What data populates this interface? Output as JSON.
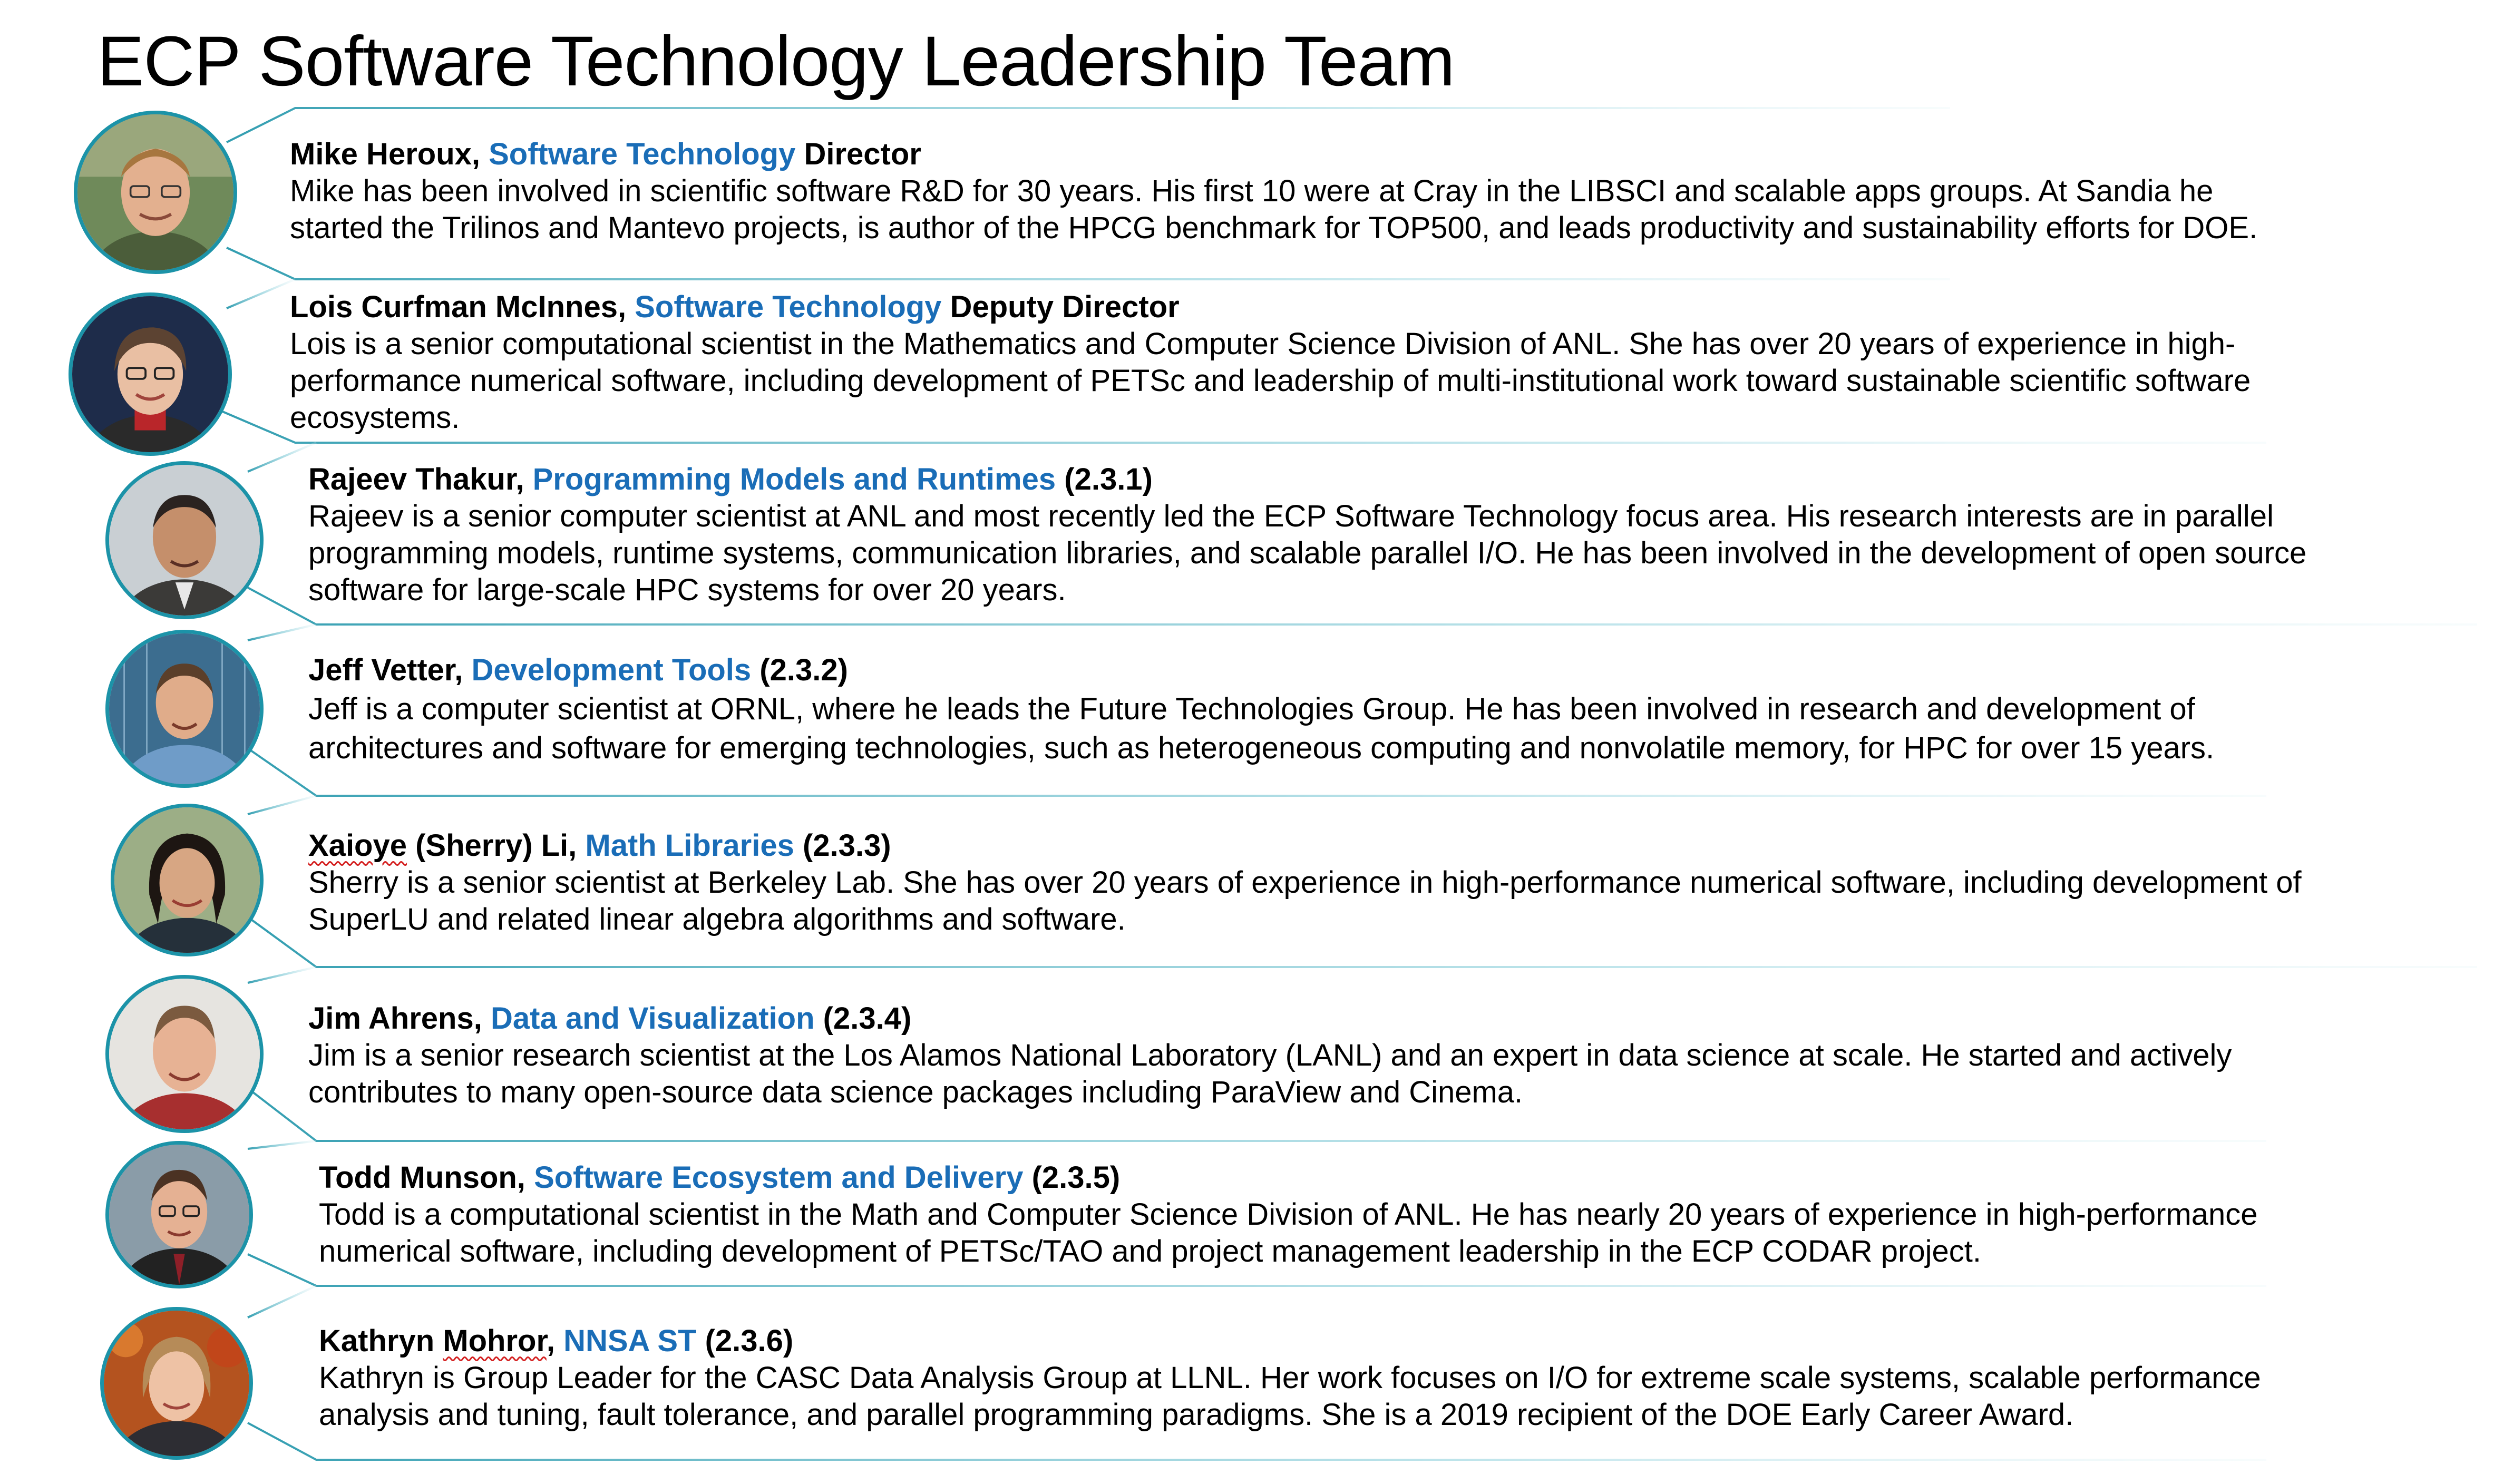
{
  "title": "ECP Software Technology Leadership Team",
  "colors": {
    "accent_blue": "#1a6db7",
    "frame_teal": "#1c93a8",
    "text": "#000000"
  },
  "members": [
    {
      "name": "Mike Heroux,",
      "role": "Software Technology",
      "suffix": " Director",
      "bio": [
        "Mike has been involved in scientific software R&D for 30 years.  His first 10 were at Cray in the LIBSCI and scalable apps groups. At Sandia he",
        "started the Trilinos and Mantevo projects, is author of the HPCG benchmark for TOP500, and leads productivity and sustainability efforts for DOE."
      ]
    },
    {
      "name": "Lois Curfman McInnes,",
      "role": "Software Technology",
      "suffix": " Deputy Director",
      "bio": [
        "Lois is a senior computational scientist in the Mathematics and Computer Science Division of ANL. She has over 20 years of experience in high-",
        "performance numerical software, including development of PETSc and leadership of multi-institutional work toward sustainable scientific software",
        "ecosystems."
      ]
    },
    {
      "name": "Rajeev Thakur,",
      "role": "Programming Models and Runtimes",
      "suffix": " (2.3.1)",
      "bio": [
        "Rajeev is a senior computer scientist at ANL and most recently led the ECP Software Technology focus area. His research interests are in parallel",
        "programming models, runtime systems, communication libraries, and scalable parallel I/O. He has been involved in the development of open source",
        "software for large-scale HPC systems for over 20 years."
      ]
    },
    {
      "name": "Jeff Vetter,",
      "role": "Development Tools",
      "suffix": " (2.3.2)",
      "bio": [
        "Jeff is a computer scientist at ORNL, where he leads the Future Technologies Group. He has been involved in research and development of",
        "architectures and software for emerging technologies, such as heterogeneous computing and nonvolatile memory, for HPC for over 15 years."
      ]
    },
    {
      "name_first": "Xaioye",
      "name_rest": " (Sherry) Li,",
      "role": "Math Libraries",
      "suffix": " (2.3.3)",
      "bio": [
        "Sherry is a senior scientist at Berkeley Lab. She has over 20 years of experience in high-performance numerical software, including development of",
        "SuperLU and related linear algebra algorithms and software."
      ]
    },
    {
      "name": "Jim Ahrens,",
      "role": "Data and Visualization",
      "suffix": " (2.3.4)",
      "bio": [
        "Jim is a senior research scientist at the Los Alamos National Laboratory (LANL) and an expert in data science at scale. He started and actively",
        "contributes to many open-source data science packages including ParaView and Cinema."
      ]
    },
    {
      "name": "Todd Munson,",
      "role": "Software Ecosystem and Delivery",
      "suffix": " (2.3.5)",
      "bio": [
        "Todd is a computational scientist in the Math and Computer Science Division of ANL. He has nearly 20 years of experience in high-performance",
        "numerical software, including development of PETSc/TAO and project management leadership in the ECP CODAR project."
      ]
    },
    {
      "name_first": "Kathryn",
      "name_mid": "Mohror",
      "name_rest": ",",
      "role": "NNSA ST",
      "suffix": " (2.3.6)",
      "bio": [
        "Kathryn is Group Leader for the CASC Data Analysis Group at LLNL. Her work focuses on I/O for extreme scale systems, scalable performance",
        "analysis and tuning, fault tolerance, and parallel programming paradigms. She is a 2019 recipient of the DOE Early Career Award."
      ]
    }
  ]
}
